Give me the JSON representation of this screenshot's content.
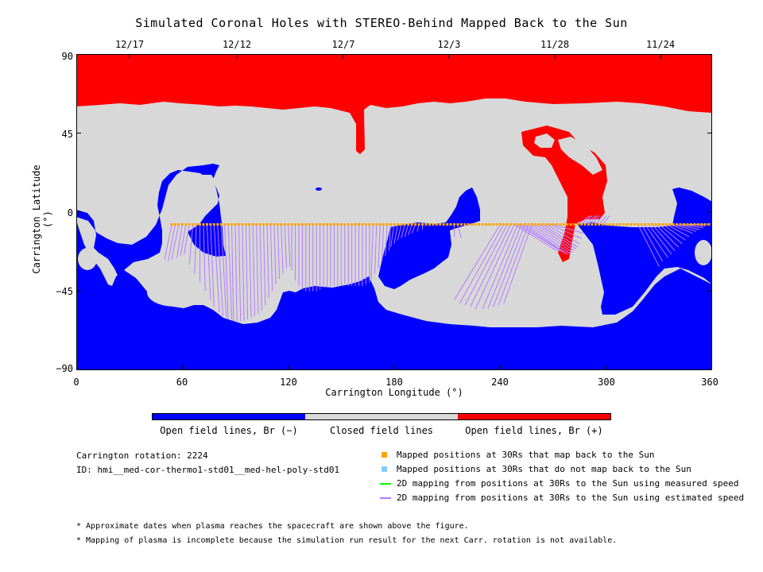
{
  "chart_data": {
    "type": "heatmap",
    "title": "Simulated Coronal Holes with STEREO-Behind Mapped Back to the Sun",
    "xlabel": "Carrington Longitude (°)",
    "ylabel": "Carrington Latitude (°)",
    "xlim": [
      0,
      360
    ],
    "ylim": [
      -90,
      90
    ],
    "x_ticks": [
      "0",
      "60",
      "120",
      "180",
      "240",
      "300",
      "360"
    ],
    "y_ticks": [
      "90",
      "45",
      "0",
      "−45",
      "−90"
    ],
    "top_axis_dates": [
      {
        "label": "12/17",
        "lon": 30
      },
      {
        "label": "12/12",
        "lon": 91
      },
      {
        "label": "12/7",
        "lon": 151
      },
      {
        "label": "12/3",
        "lon": 211
      },
      {
        "label": "11/28",
        "lon": 271
      },
      {
        "label": "11/24",
        "lon": 331
      }
    ],
    "colorbar": [
      {
        "label": "Open field lines, Br (−)",
        "color": "#0000ff"
      },
      {
        "label": "Closed field lines",
        "color": "#d8d8d8"
      },
      {
        "label": "Open field lines, Br (+)",
        "color": "#ff0000"
      }
    ],
    "mapped_positions": {
      "lon_start": 54,
      "lon_end": 360,
      "lat": -7,
      "color": "#ffa500"
    },
    "mapping_lines": [
      [
        54,
        -7,
        50,
        -27
      ],
      [
        56,
        -7,
        52,
        -28
      ],
      [
        58,
        -7,
        54,
        -27
      ],
      [
        60,
        -7,
        57,
        -26
      ],
      [
        62,
        -7,
        59,
        -25
      ],
      [
        64,
        -7,
        61,
        -24
      ],
      [
        66,
        -7,
        64,
        -30
      ],
      [
        68,
        -7,
        67,
        -35
      ],
      [
        70,
        -7,
        70,
        -40
      ],
      [
        72,
        -7,
        73,
        -45
      ],
      [
        74,
        -7,
        76,
        -50
      ],
      [
        76,
        -7,
        78,
        -54
      ],
      [
        78,
        -7,
        81,
        -57
      ],
      [
        80,
        -7,
        83,
        -59
      ],
      [
        82,
        -7,
        85,
        -60
      ],
      [
        84,
        -7,
        86,
        -61
      ],
      [
        86,
        -7,
        88,
        -61
      ],
      [
        88,
        -7,
        89,
        -62
      ],
      [
        90,
        -7,
        91,
        -62
      ],
      [
        92,
        -7,
        93,
        -62
      ],
      [
        94,
        -7,
        95,
        -62
      ],
      [
        96,
        -7,
        97,
        -61
      ],
      [
        98,
        -7,
        99,
        -60
      ],
      [
        100,
        -7,
        101,
        -59
      ],
      [
        102,
        -7,
        103,
        -58
      ],
      [
        104,
        -7,
        105,
        -56
      ],
      [
        106,
        -7,
        107,
        -53
      ],
      [
        108,
        -7,
        109,
        -49
      ],
      [
        110,
        -7,
        111,
        -45
      ],
      [
        112,
        -7,
        113,
        -41
      ],
      [
        114,
        -7,
        115,
        -38
      ],
      [
        116,
        -7,
        117,
        -35
      ],
      [
        118,
        -7,
        119,
        -32
      ],
      [
        120,
        -7,
        121,
        -31
      ],
      [
        122,
        -7,
        122,
        -33
      ],
      [
        124,
        -7,
        124,
        -39
      ],
      [
        126,
        -7,
        126,
        -42
      ],
      [
        128,
        -7,
        128,
        -44
      ],
      [
        130,
        -7,
        130,
        -45
      ],
      [
        132,
        -7,
        132,
        -45
      ],
      [
        134,
        -7,
        134,
        -45
      ],
      [
        136,
        -7,
        136,
        -45
      ],
      [
        138,
        -7,
        138,
        -44
      ],
      [
        140,
        -7,
        140,
        -43
      ],
      [
        142,
        -7,
        142,
        -43
      ],
      [
        144,
        -7,
        144,
        -42
      ],
      [
        146,
        -7,
        146,
        -42
      ],
      [
        148,
        -7,
        148,
        -42
      ],
      [
        150,
        -7,
        150,
        -42
      ],
      [
        152,
        -7,
        152,
        -41
      ],
      [
        154,
        -7,
        154,
        -42
      ],
      [
        156,
        -7,
        156,
        -42
      ],
      [
        158,
        -7,
        158,
        -42
      ],
      [
        160,
        -7,
        160,
        -42
      ],
      [
        162,
        -7,
        162,
        -42
      ],
      [
        164,
        -7,
        164,
        -41
      ],
      [
        166,
        -7,
        166,
        -40
      ],
      [
        168,
        -7,
        167,
        -38
      ],
      [
        170,
        -7,
        169,
        -35
      ],
      [
        172,
        -7,
        171,
        -32
      ],
      [
        174,
        -7,
        173,
        -28
      ],
      [
        176,
        -7,
        175,
        -25
      ],
      [
        178,
        -7,
        177,
        -22
      ],
      [
        180,
        -7,
        178,
        -20
      ],
      [
        182,
        -7,
        180,
        -18
      ],
      [
        184,
        -7,
        182,
        -16
      ],
      [
        186,
        -7,
        184,
        -15
      ],
      [
        188,
        -7,
        186,
        -14
      ],
      [
        190,
        -7,
        188,
        -13
      ],
      [
        192,
        -7,
        190,
        -12
      ],
      [
        194,
        -7,
        193,
        -11
      ],
      [
        196,
        -7,
        196,
        -10
      ],
      [
        214,
        -7,
        214,
        -14
      ],
      [
        216,
        -7,
        218,
        -15
      ],
      [
        240,
        -7,
        214,
        -50
      ],
      [
        242,
        -7,
        217,
        -52
      ],
      [
        244,
        -7,
        220,
        -53
      ],
      [
        246,
        -7,
        223,
        -54
      ],
      [
        248,
        -7,
        226,
        -55
      ],
      [
        250,
        -7,
        230,
        -55
      ],
      [
        252,
        -7,
        233,
        -55
      ],
      [
        254,
        -7,
        236,
        -54
      ],
      [
        256,
        -7,
        239,
        -53
      ],
      [
        258,
        -7,
        242,
        -52
      ],
      [
        248,
        -7,
        272,
        -22
      ],
      [
        250,
        -7,
        274,
        -22
      ],
      [
        252,
        -7,
        276,
        -23
      ],
      [
        254,
        -7,
        278,
        -24
      ],
      [
        256,
        -7,
        280,
        -24
      ],
      [
        258,
        -7,
        281,
        -23
      ],
      [
        260,
        -7,
        282,
        -22
      ],
      [
        262,
        -7,
        283,
        -21
      ],
      [
        264,
        -7,
        284,
        -20
      ],
      [
        266,
        -7,
        285,
        -18
      ],
      [
        268,
        -7,
        286,
        -15
      ],
      [
        270,
        -7,
        287,
        -12
      ],
      [
        284,
        -7,
        291,
        -2
      ],
      [
        286,
        -7,
        292,
        -2
      ],
      [
        288,
        -7,
        294,
        -2
      ],
      [
        290,
        -7,
        295,
        -2
      ],
      [
        292,
        -7,
        296,
        -2
      ],
      [
        294,
        -7,
        298,
        -2
      ],
      [
        296,
        -7,
        300,
        -2
      ],
      [
        298,
        -7,
        302,
        -2
      ],
      [
        318,
        -7,
        330,
        -31
      ],
      [
        320,
        -7,
        332,
        -28
      ],
      [
        322,
        -7,
        335,
        -26
      ],
      [
        324,
        -7,
        337,
        -24
      ],
      [
        326,
        -7,
        339,
        -22
      ],
      [
        328,
        -7,
        341,
        -20
      ],
      [
        330,
        -7,
        343,
        -18
      ],
      [
        332,
        -7,
        345,
        -16
      ],
      [
        334,
        -7,
        347,
        -14
      ],
      [
        336,
        -7,
        349,
        -12
      ],
      [
        338,
        -7,
        351,
        -11
      ],
      [
        340,
        -7,
        353,
        -10
      ],
      [
        342,
        -7,
        355,
        -9
      ],
      [
        344,
        -7,
        356,
        -8
      ],
      [
        346,
        -7,
        357,
        -7
      ]
    ]
  },
  "info": {
    "carrington_rotation": "Carrington rotation: 2224",
    "id": "ID: hmi__med-cor-thermo1-std01__med-hel-poly-std01"
  },
  "legend": [
    {
      "label": "Mapped positions at 30Rs that map back to the Sun",
      "color": "#ffa500",
      "kind": "square"
    },
    {
      "label": "Mapped positions at 30Rs that do not map back to the Sun",
      "color": "#87cefa",
      "kind": "square"
    },
    {
      "label": "2D mapping from positions at 30Rs to the Sun using measured speed",
      "color": "#00ff00",
      "kind": "line"
    },
    {
      "label": "2D mapping from positions at 30Rs to the Sun using estimated speed",
      "color": "#b57bff",
      "kind": "line"
    }
  ],
  "notes": [
    "* Approximate dates when plasma reaches the spacecraft are shown above the figure.",
    "* Mapping of plasma is incomplete because the simulation run result for the next Carr. rotation is not available."
  ]
}
